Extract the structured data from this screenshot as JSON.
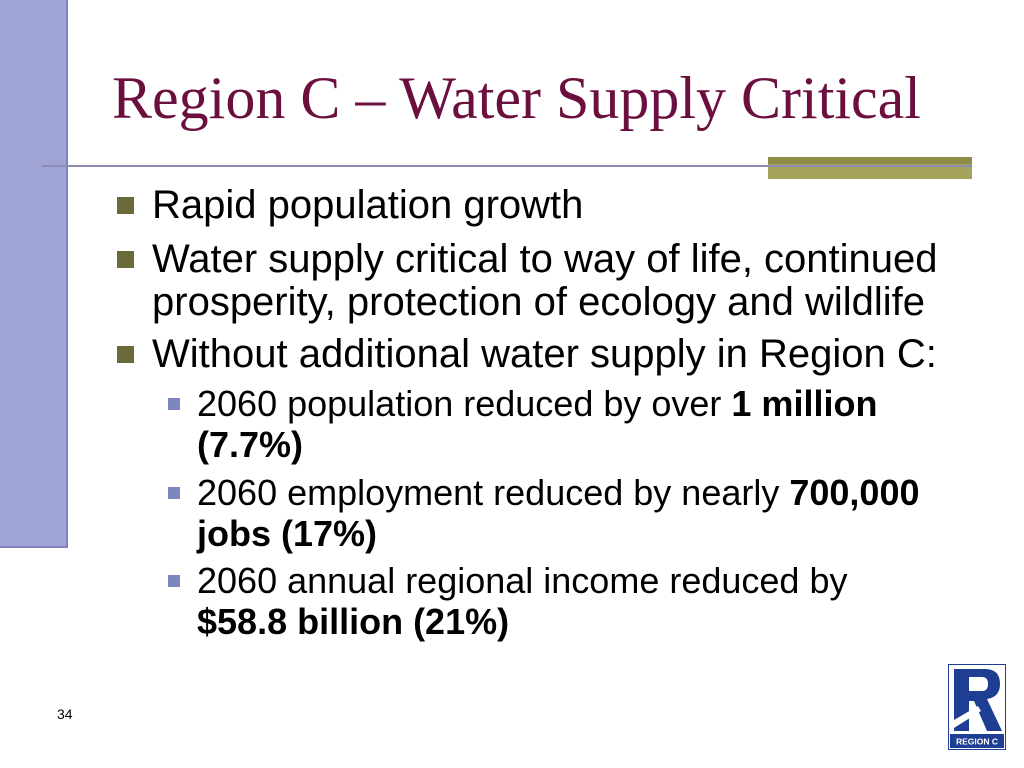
{
  "title": "Region C – Water Supply Critical",
  "bullets": [
    {
      "lines": [
        "Rapid population growth"
      ]
    },
    {
      "lines": [
        "Water supply critical to way of life, continued",
        "prosperity, protection of ecology and wildlife"
      ]
    },
    {
      "lines": [
        "Without additional water supply in Region C:"
      ],
      "sub_bullets": [
        {
          "line1": "2060 population reduced by over ",
          "line1_bold": "1 million",
          "line2_bold": "(7.7%)"
        },
        {
          "line1": "2060 employment reduced by nearly ",
          "line1_bold": "700,000",
          "line2_bold": "jobs (17%)"
        },
        {
          "line1": "2060 annual regional income reduced by",
          "line2_bold": "$58.8 billion (21%)"
        }
      ]
    }
  ],
  "page_number": "34",
  "logo": {
    "caption": "REGION C"
  },
  "colors": {
    "title": "#6B0F3F",
    "side_bar": "#9FA4D4",
    "side_bar_edge": "#7B82BC",
    "rule": "#8C8CB4",
    "accent_olive": "#A6A35D",
    "accent_olive_dark": "#8E8C46",
    "bullet_l1": "#6B6A3A",
    "bullet_l2": "#7E86BF",
    "logo": "#1D3E92",
    "text": "#000000"
  }
}
